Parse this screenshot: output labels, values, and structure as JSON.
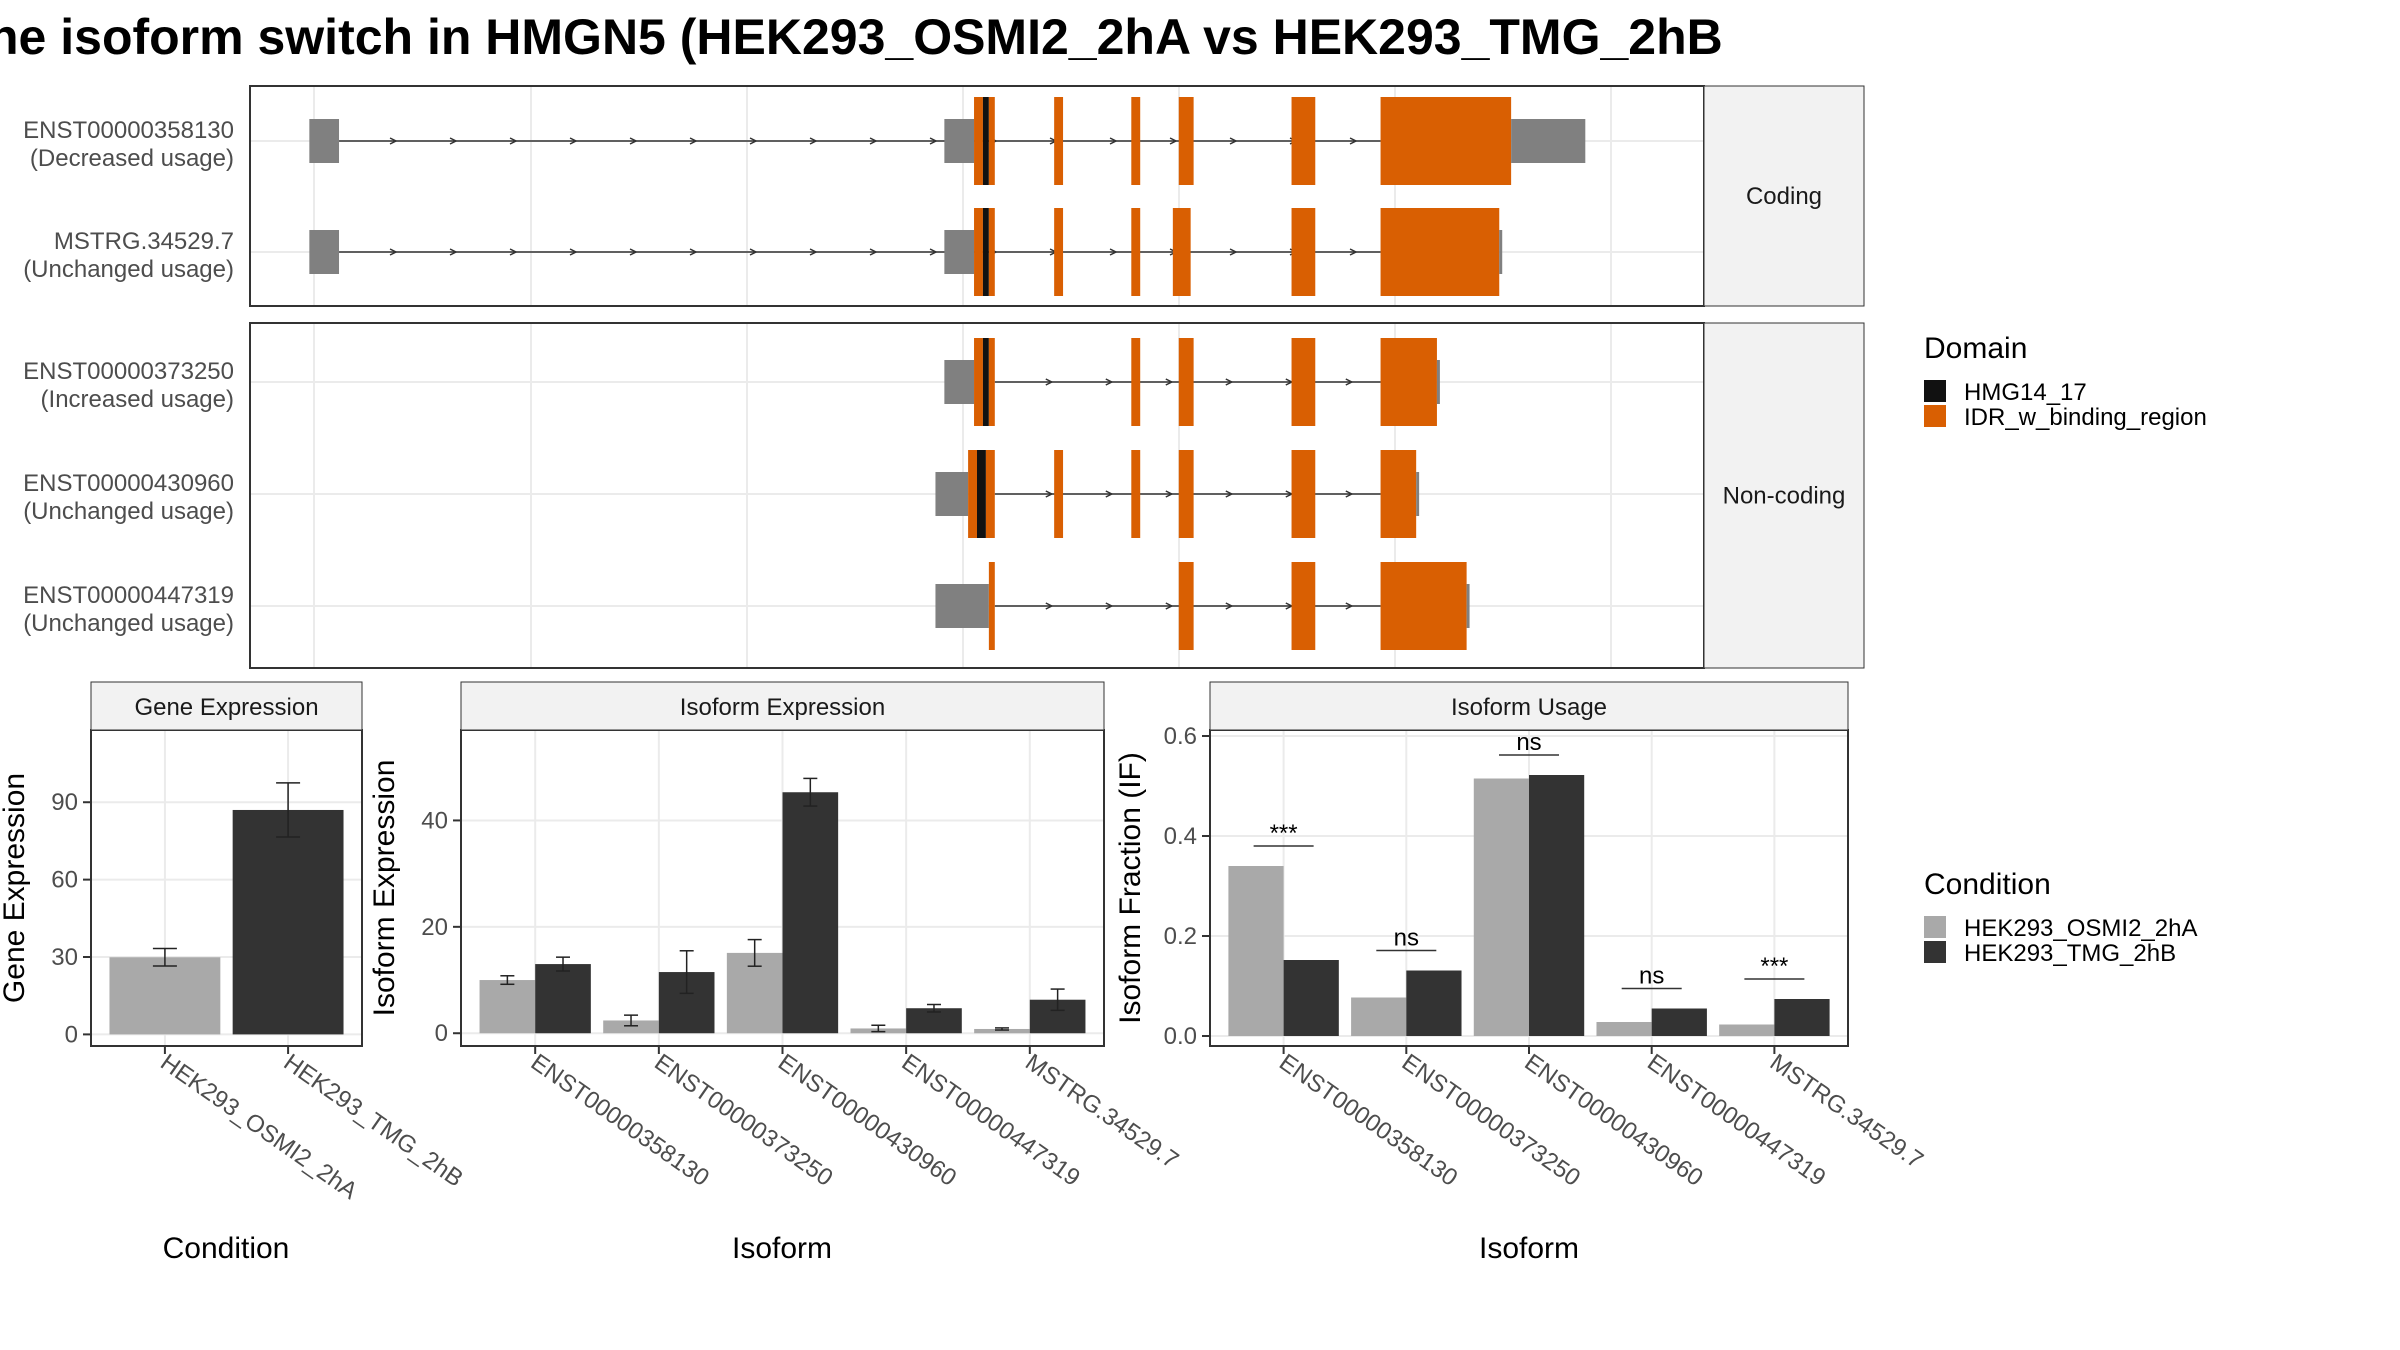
{
  "title": "he isoform switch in HMGN5 (HEK293_OSMI2_2hA vs HEK293_TMG_2hB",
  "colors": {
    "idr": "#D95F02",
    "hmg": "#111111",
    "utr": "#808080",
    "cond1": "#A9A9A9",
    "cond2": "#333333",
    "grid": "#EBEBEB",
    "strip": "#F2F2F2"
  },
  "structure": {
    "groups": [
      {
        "label": "Coding",
        "transcripts": [
          {
            "id": "ENST00000358130",
            "usage": "(Decreased usage)",
            "exons": [
              {
                "start": 0.0,
                "end": 1.0,
                "type": "utr"
              },
              {
                "start": 21.4,
                "end": 22.4,
                "type": "utr"
              },
              {
                "start": 22.4,
                "end": 22.7,
                "type": "idr"
              },
              {
                "start": 22.7,
                "end": 22.9,
                "type": "hmg"
              },
              {
                "start": 22.9,
                "end": 23.1,
                "type": "idr"
              },
              {
                "start": 25.1,
                "end": 25.4,
                "type": "idr"
              },
              {
                "start": 27.7,
                "end": 28.0,
                "type": "idr"
              },
              {
                "start": 29.3,
                "end": 29.8,
                "type": "idr"
              },
              {
                "start": 33.1,
                "end": 33.9,
                "type": "idr"
              },
              {
                "start": 36.1,
                "end": 40.5,
                "type": "idr"
              },
              {
                "start": 40.5,
                "end": 43.0,
                "type": "utr"
              }
            ],
            "intron": [
              1.0,
              36.1
            ]
          },
          {
            "id": "MSTRG.34529.7",
            "usage": "(Unchanged usage)",
            "exons": [
              {
                "start": 0.0,
                "end": 1.0,
                "type": "utr"
              },
              {
                "start": 21.4,
                "end": 22.4,
                "type": "utr"
              },
              {
                "start": 22.4,
                "end": 22.7,
                "type": "idr"
              },
              {
                "start": 22.7,
                "end": 22.9,
                "type": "hmg"
              },
              {
                "start": 22.9,
                "end": 23.1,
                "type": "idr"
              },
              {
                "start": 25.1,
                "end": 25.4,
                "type": "idr"
              },
              {
                "start": 27.7,
                "end": 28.0,
                "type": "idr"
              },
              {
                "start": 29.1,
                "end": 29.7,
                "type": "idr"
              },
              {
                "start": 33.1,
                "end": 33.9,
                "type": "idr"
              },
              {
                "start": 36.1,
                "end": 40.1,
                "type": "idr"
              },
              {
                "start": 40.1,
                "end": 40.2,
                "type": "utr"
              }
            ],
            "intron": [
              1.0,
              36.1
            ]
          }
        ]
      },
      {
        "label": "Non-coding",
        "transcripts": [
          {
            "id": "ENST00000373250",
            "usage": "(Increased usage)",
            "exons": [
              {
                "start": 21.4,
                "end": 22.4,
                "type": "utr"
              },
              {
                "start": 22.4,
                "end": 22.7,
                "type": "idr"
              },
              {
                "start": 22.7,
                "end": 22.9,
                "type": "hmg"
              },
              {
                "start": 22.9,
                "end": 23.1,
                "type": "idr"
              },
              {
                "start": 27.7,
                "end": 28.0,
                "type": "idr"
              },
              {
                "start": 29.3,
                "end": 29.8,
                "type": "idr"
              },
              {
                "start": 33.1,
                "end": 33.9,
                "type": "idr"
              },
              {
                "start": 36.1,
                "end": 38.0,
                "type": "idr"
              },
              {
                "start": 38.0,
                "end": 38.1,
                "type": "utr"
              }
            ],
            "intron": [
              23.1,
              36.1
            ]
          },
          {
            "id": "ENST00000430960",
            "usage": "(Unchanged usage)",
            "exons": [
              {
                "start": 21.1,
                "end": 22.2,
                "type": "utr"
              },
              {
                "start": 22.2,
                "end": 22.5,
                "type": "idr"
              },
              {
                "start": 22.5,
                "end": 22.8,
                "type": "hmg"
              },
              {
                "start": 22.8,
                "end": 23.1,
                "type": "idr"
              },
              {
                "start": 25.1,
                "end": 25.4,
                "type": "idr"
              },
              {
                "start": 27.7,
                "end": 28.0,
                "type": "idr"
              },
              {
                "start": 29.3,
                "end": 29.8,
                "type": "idr"
              },
              {
                "start": 33.1,
                "end": 33.9,
                "type": "idr"
              },
              {
                "start": 36.1,
                "end": 37.3,
                "type": "idr"
              },
              {
                "start": 37.3,
                "end": 37.4,
                "type": "utr"
              }
            ],
            "intron": [
              23.1,
              36.1
            ]
          },
          {
            "id": "ENST00000447319",
            "usage": "(Unchanged usage)",
            "exons": [
              {
                "start": 21.1,
                "end": 22.5,
                "type": "utr"
              },
              {
                "start": 22.5,
                "end": 22.9,
                "type": "utr"
              },
              {
                "start": 22.9,
                "end": 23.1,
                "type": "idr"
              },
              {
                "start": 29.3,
                "end": 29.8,
                "type": "idr"
              },
              {
                "start": 33.1,
                "end": 33.9,
                "type": "idr"
              },
              {
                "start": 36.1,
                "end": 39.0,
                "type": "idr"
              },
              {
                "start": 39.0,
                "end": 39.1,
                "type": "utr"
              }
            ],
            "intron": [
              23.1,
              36.1
            ]
          }
        ]
      }
    ]
  },
  "legend_domain": {
    "title": "Domain",
    "items": [
      {
        "label": "HMG14_17",
        "color": "#111111"
      },
      {
        "label": "IDR_w_binding_region",
        "color": "#D95F02"
      }
    ]
  },
  "legend_condition": {
    "title": "Condition",
    "items": [
      {
        "label": "HEK293_OSMI2_2hA",
        "color": "#A9A9A9"
      },
      {
        "label": "HEK293_TMG_2hB",
        "color": "#333333"
      }
    ]
  },
  "chart_data": [
    {
      "type": "bar",
      "title": "Gene Expression",
      "xlabel": "Condition",
      "ylabel": "Gene Expression",
      "categories": [
        "HEK293_OSMI2_2hA",
        "HEK293_TMG_2hB"
      ],
      "values": [
        29.9,
        87.0
      ],
      "errors": [
        [
          26.5,
          33.3
        ],
        [
          76.5,
          97.5
        ]
      ],
      "yticks": [
        0,
        30,
        60,
        90
      ],
      "ylim": [
        -4.5,
        118
      ]
    },
    {
      "type": "bar",
      "title": "Isoform Expression",
      "xlabel": "Isoform",
      "ylabel": "Isoform Expression",
      "categories": [
        "ENST00000358130",
        "ENST00000373250",
        "ENST00000430960",
        "ENST00000447319",
        "MSTRG.34529.7"
      ],
      "series": [
        {
          "name": "HEK293_OSMI2_2hA",
          "values": [
            10.0,
            2.4,
            15.1,
            0.9,
            0.8
          ],
          "errors": [
            [
              9.2,
              10.8
            ],
            [
              1.4,
              3.4
            ],
            [
              12.6,
              17.6
            ],
            [
              0.3,
              1.5
            ],
            [
              0.6,
              1.0
            ]
          ]
        },
        {
          "name": "HEK293_TMG_2hB",
          "values": [
            13.0,
            11.5,
            45.3,
            4.7,
            6.3
          ],
          "errors": [
            [
              11.7,
              14.3
            ],
            [
              7.5,
              15.5
            ],
            [
              42.7,
              47.9
            ],
            [
              4.0,
              5.4
            ],
            [
              4.3,
              8.3
            ]
          ]
        }
      ],
      "yticks": [
        0,
        20,
        40
      ],
      "ylim": [
        -2.4,
        57
      ]
    },
    {
      "type": "bar",
      "title": "Isoform Usage",
      "xlabel": "Isoform",
      "ylabel": "Isoform Fraction (IF)",
      "categories": [
        "ENST00000358130",
        "ENST00000373250",
        "ENST00000430960",
        "ENST00000447319",
        "MSTRG.34529.7"
      ],
      "series": [
        {
          "name": "HEK293_OSMI2_2hA",
          "values": [
            0.34,
            0.077,
            0.515,
            0.028,
            0.023
          ]
        },
        {
          "name": "HEK293_TMG_2hB",
          "values": [
            0.152,
            0.131,
            0.522,
            0.055,
            0.074
          ]
        }
      ],
      "significance": [
        "***",
        "ns",
        "ns",
        "ns",
        "***"
      ],
      "yticks": [
        0.0,
        0.2,
        0.4,
        0.6
      ],
      "yticklabels": [
        "0.0",
        "0.2",
        "0.4",
        "0.6"
      ],
      "ylim": [
        -0.02,
        0.612
      ]
    }
  ]
}
